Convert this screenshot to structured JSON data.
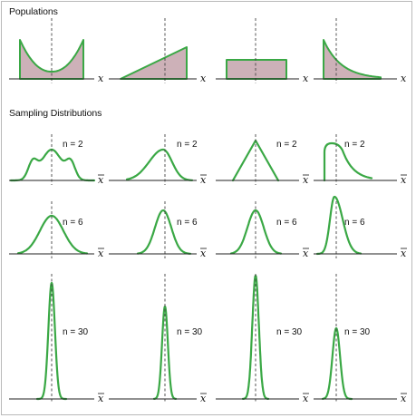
{
  "headers": {
    "populations": "Populations",
    "sampling": "Sampling Distributions"
  },
  "axis_label_x": "x",
  "axis_label_xbar": "x",
  "n_labels": [
    "n = 2",
    "n = 6",
    "n = 30"
  ],
  "n_values": [
    2,
    6,
    30
  ],
  "colors": {
    "curve": "#3aa845",
    "fill": "#cdb1b8",
    "axis": "#222222",
    "dashed": "#444444",
    "frame": "#b9b9b9"
  },
  "populations": [
    {
      "shape": "u-shaped"
    },
    {
      "shape": "increasing-linear"
    },
    {
      "shape": "uniform"
    },
    {
      "shape": "exponential-decreasing"
    }
  ]
}
